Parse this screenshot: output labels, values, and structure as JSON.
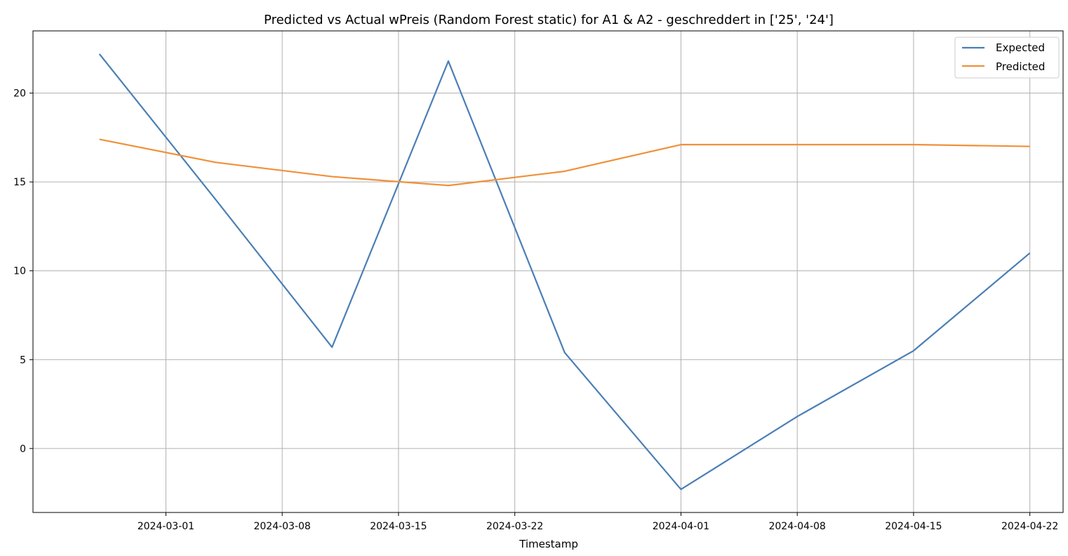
{
  "chart_data": {
    "type": "line",
    "title": "Predicted vs Actual wPreis (Random Forest static) for A1 & A2 -  geschreddert in ['25', '24']",
    "xlabel": "Timestamp",
    "ylabel": "",
    "x": [
      "2024-02-26",
      "2024-03-04",
      "2024-03-11",
      "2024-03-18",
      "2024-03-25",
      "2024-04-01",
      "2024-04-08",
      "2024-04-15",
      "2024-04-22"
    ],
    "series": [
      {
        "name": "Expected",
        "color": "#4a7fb5",
        "values": [
          22.2,
          14.0,
          5.7,
          21.8,
          5.4,
          -2.3,
          1.8,
          5.5,
          11.0
        ]
      },
      {
        "name": "Predicted",
        "color": "#f0903a",
        "values": [
          17.4,
          16.1,
          15.3,
          14.8,
          15.6,
          17.1,
          17.1,
          17.1,
          17.0
        ]
      }
    ],
    "x_ticks": [
      "2024-03-01",
      "2024-03-08",
      "2024-03-15",
      "2024-03-22",
      "2024-04-01",
      "2024-04-08",
      "2024-04-15",
      "2024-04-22"
    ],
    "y_ticks": [
      0,
      5,
      10,
      15,
      20
    ],
    "xlim": [
      "2024-02-22",
      "2024-04-24"
    ],
    "ylim": [
      -3.6,
      23.5
    ],
    "grid": true,
    "legend": "top-right"
  }
}
